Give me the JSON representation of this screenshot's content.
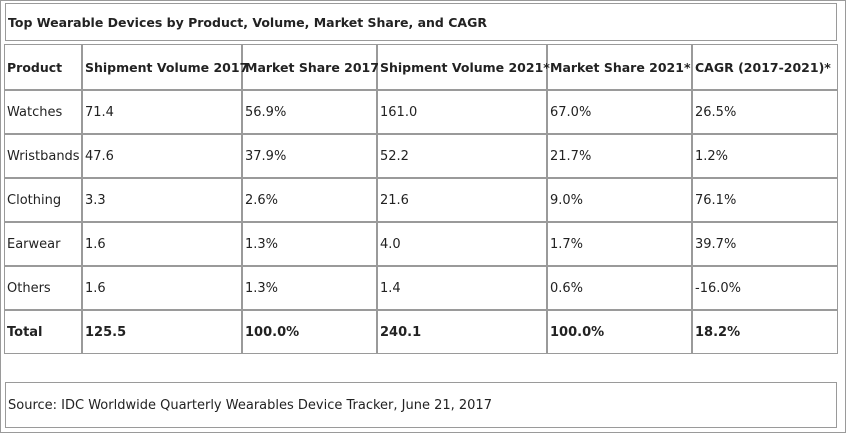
{
  "title": "Top Wearable Devices by Product, Volume, Market Share, and CAGR",
  "columns": [
    "Product",
    "Shipment Volume 2017",
    "Market Share 2017",
    "Shipment Volume 2021*",
    "Market Share 2021*",
    "CAGR (2017-2021)*"
  ],
  "rows": [
    [
      "Watches",
      "71.4",
      "56.9%",
      "161.0",
      "67.0%",
      "26.5%"
    ],
    [
      "Wristbands",
      "47.6",
      "37.9%",
      "52.2",
      "21.7%",
      "1.2%"
    ],
    [
      "Clothing",
      "3.3",
      "2.6%",
      "21.6",
      "9.0%",
      "76.1%"
    ],
    [
      "Earwear",
      "1.6",
      "1.3%",
      "4.0",
      "1.7%",
      "39.7%"
    ],
    [
      "Others",
      "1.6",
      "1.3%",
      "1.4",
      "0.6%",
      "-16.0%"
    ]
  ],
  "total": [
    "Total",
    "125.5",
    "100.0%",
    "240.1",
    "100.0%",
    "18.2%"
  ],
  "source": "Source: IDC Worldwide Quarterly Wearables Device Tracker, June 21, 2017"
}
